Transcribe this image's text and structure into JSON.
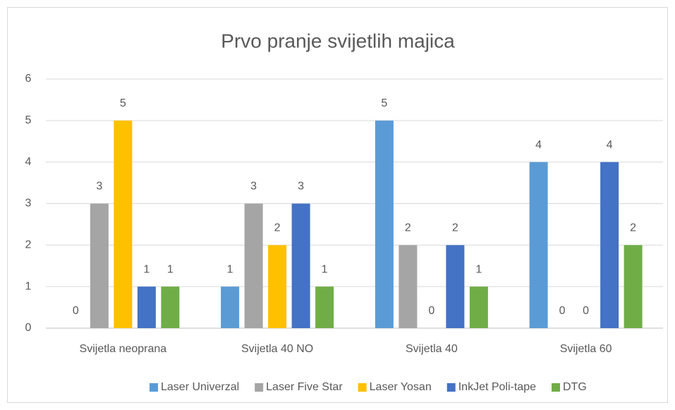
{
  "chart_data": {
    "type": "bar",
    "title": "Prvo pranje svijetlih majica",
    "categories": [
      "Svijetla neoprana",
      "Svijetla 40 NO",
      "Svijetla 40",
      "Svijetla 60"
    ],
    "series": [
      {
        "name": "Laser Univerzal",
        "color": "#5b9bd5",
        "values": [
          0,
          1,
          5,
          4
        ]
      },
      {
        "name": "Laser Five Star",
        "color": "#a5a5a5",
        "values": [
          3,
          3,
          2,
          0
        ]
      },
      {
        "name": "Laser Yosan",
        "color": "#ffc000",
        "values": [
          5,
          2,
          0,
          0
        ]
      },
      {
        "name": "InkJet Poli-tape",
        "color": "#4472c4",
        "values": [
          1,
          3,
          2,
          4
        ]
      },
      {
        "name": "DTG",
        "color": "#70ad47",
        "values": [
          1,
          1,
          1,
          2
        ]
      }
    ],
    "ylim": [
      0,
      6
    ],
    "yticks": [
      0,
      1,
      2,
      3,
      4,
      5,
      6
    ],
    "grid": true,
    "legend": "bottom"
  }
}
